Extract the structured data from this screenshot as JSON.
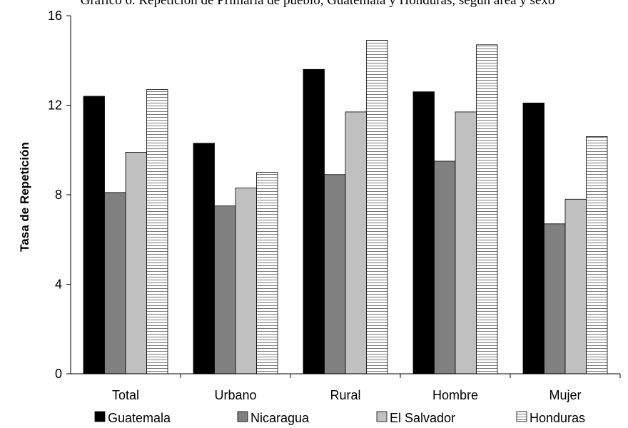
{
  "chart_data": {
    "type": "bar",
    "title": "Gráfico 6. Repetición de Primaria de pueblo, Guatemala y Honduras, según área y sexo",
    "xlabel": "",
    "ylabel": "Tasa de Repetición",
    "ylim": [
      0,
      16
    ],
    "yticks": [
      "0",
      "4",
      "8",
      "12",
      "16"
    ],
    "grid": false,
    "legend_position": "bottom",
    "categories": [
      "Total",
      "Urbano",
      "Rural",
      "Hombre",
      "Mujer"
    ],
    "series": [
      {
        "name": "Guatemala",
        "values": [
          12.4,
          10.3,
          13.6,
          12.6,
          12.1
        ],
        "color": "#000000",
        "pattern": "solid"
      },
      {
        "name": "Nicaragua",
        "values": [
          8.1,
          7.5,
          8.9,
          9.5,
          6.7
        ],
        "color": "#808080",
        "pattern": "solid"
      },
      {
        "name": "El Salvador",
        "values": [
          9.9,
          8.3,
          11.7,
          11.7,
          7.8
        ],
        "color": "#c0c0c0",
        "pattern": "solid"
      },
      {
        "name": "Honduras",
        "values": [
          12.7,
          9.0,
          14.9,
          14.7,
          10.6
        ],
        "color": "#ffffff",
        "pattern": "horizontal-lines"
      }
    ]
  }
}
